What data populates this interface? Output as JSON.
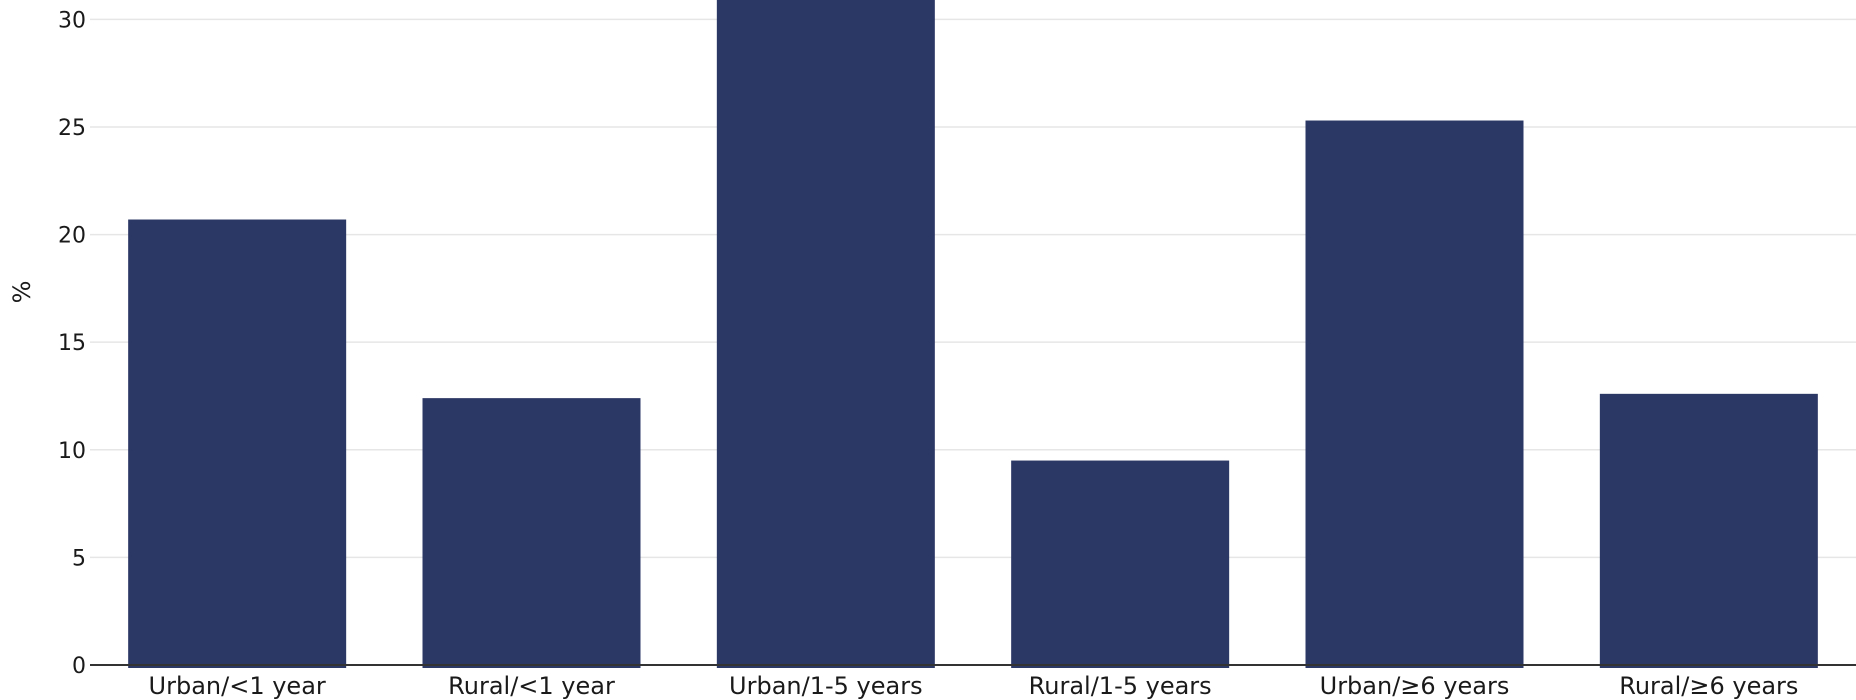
{
  "chart_data": {
    "type": "bar",
    "title": "",
    "xlabel": "",
    "ylabel": "%",
    "categories": [
      "Urban/<1 year",
      "Rural/<1 year",
      "Urban/1-5 years",
      "Rural/1-5 years",
      "Urban/≥6 years",
      "Rural/≥6 years"
    ],
    "values": [
      20.7,
      12.4,
      31.5,
      9.5,
      25.3,
      12.6
    ],
    "ylim": [
      0,
      30.9
    ],
    "yticks": [
      0,
      5,
      10,
      15,
      20,
      25,
      30
    ],
    "grid": true,
    "legend": "none",
    "bar_color": "#2b3764",
    "grid_color": "#e6e6e6",
    "axis_color": "#333333"
  }
}
